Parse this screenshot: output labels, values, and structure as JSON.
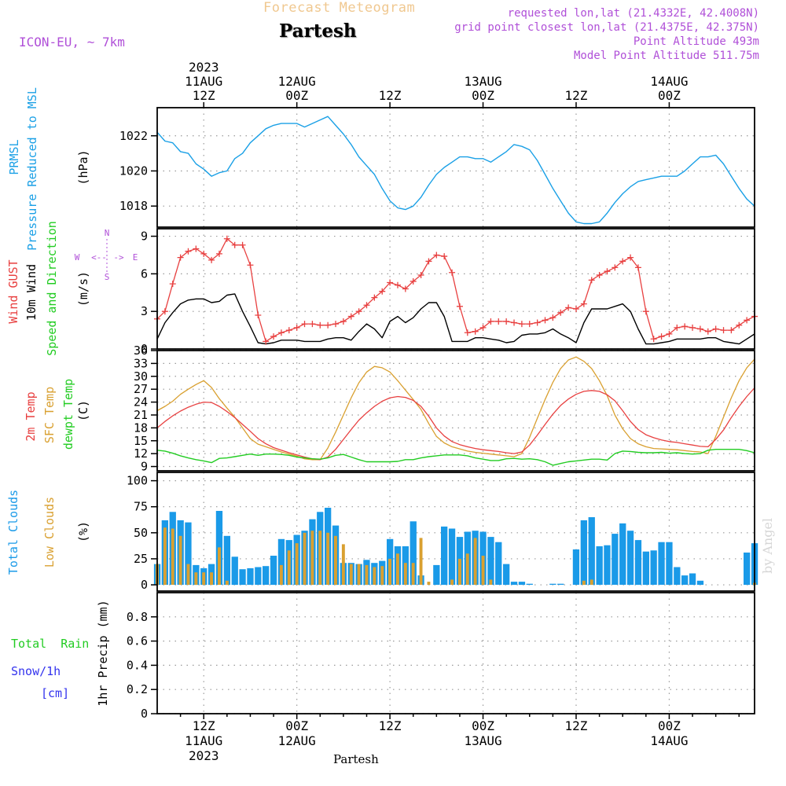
{
  "header": {
    "top_title": "Forecast Meteogram",
    "location": "Partesh",
    "model": "ICON-EU, ~ 7km",
    "requested": "requested lon,lat (21.4332E, 42.4008N)",
    "grid_point": "grid point closest lon,lat (21.4375E, 42.375N)",
    "point_altitude": "Point Altitude 493m",
    "model_altitude": "Model Point Altitude 511.75m"
  },
  "time_axis": {
    "top": [
      {
        "lines": [
          "2023",
          "11AUG",
          "12Z"
        ]
      },
      {
        "lines": [
          "12AUG",
          "00Z"
        ]
      },
      {
        "lines": [
          "12Z"
        ]
      },
      {
        "lines": [
          "13AUG",
          "00Z"
        ]
      },
      {
        "lines": [
          "12Z"
        ]
      },
      {
        "lines": [
          "14AUG",
          "00Z"
        ]
      }
    ],
    "bottom": [
      {
        "lines": [
          "12Z",
          "11AUG",
          "2023"
        ]
      },
      {
        "lines": [
          "00Z",
          "12AUG"
        ]
      },
      {
        "lines": [
          "12Z"
        ]
      },
      {
        "lines": [
          "00Z",
          "13AUG"
        ]
      },
      {
        "lines": [
          "12Z"
        ]
      },
      {
        "lines": [
          "00Z",
          "14AUG"
        ]
      }
    ],
    "footer_label": "Partesh",
    "hour_positions": [
      12,
      24,
      36,
      48,
      60,
      72
    ],
    "hour_range": [
      6,
      83
    ]
  },
  "watermark": "by Angel",
  "colors": {
    "pressure": "#1aa0e6",
    "gust": "#e84040",
    "wind": "#000000",
    "temp2m": "#e84040",
    "sfctemp": "#d9a030",
    "dewpt": "#22cc22",
    "total_clouds": "#1a9ae8",
    "low_clouds": "#d9a030",
    "rain": "#22cc22",
    "snow": "#3333ee",
    "purple": "#b050d8",
    "orange_title": "#f0c890"
  },
  "chart_data": [
    {
      "id": "pressure",
      "type": "line",
      "ylabel_lines": [
        "PRMSL",
        "Pressure Reduced to MSL"
      ],
      "unit": "(hPa)",
      "ylim": [
        1016.8,
        1023.6
      ],
      "yticks": [
        1018,
        1020,
        1022
      ],
      "x": [
        6,
        7,
        8,
        9,
        10,
        11,
        12,
        13,
        14,
        15,
        16,
        17,
        18,
        19,
        20,
        21,
        22,
        23,
        24,
        25,
        26,
        27,
        28,
        29,
        30,
        31,
        32,
        33,
        34,
        35,
        36,
        37,
        38,
        39,
        40,
        41,
        42,
        43,
        44,
        45,
        46,
        47,
        48,
        49,
        50,
        51,
        52,
        53,
        54,
        55,
        56,
        57,
        58,
        59,
        60,
        61,
        62,
        63,
        64,
        65,
        66,
        67,
        68,
        69,
        70,
        71,
        72,
        73,
        74,
        75,
        76,
        77,
        78,
        79,
        80,
        81,
        82,
        83
      ],
      "series": [
        {
          "name": "PRMSL",
          "values": [
            1022.2,
            1021.7,
            1021.6,
            1021.1,
            1021.0,
            1020.4,
            1020.1,
            1019.7,
            1019.9,
            1020.0,
            1020.7,
            1021.0,
            1021.6,
            1022.0,
            1022.4,
            1022.6,
            1022.7,
            1022.7,
            1022.7,
            1022.5,
            1022.7,
            1022.9,
            1023.1,
            1022.6,
            1022.1,
            1021.5,
            1020.8,
            1020.3,
            1019.8,
            1019.0,
            1018.3,
            1017.9,
            1017.8,
            1018.0,
            1018.5,
            1019.2,
            1019.8,
            1020.2,
            1020.5,
            1020.8,
            1020.8,
            1020.7,
            1020.7,
            1020.5,
            1020.8,
            1021.1,
            1021.5,
            1021.4,
            1021.2,
            1020.6,
            1019.8,
            1019.0,
            1018.3,
            1017.6,
            1017.1,
            1017.0,
            1017.0,
            1017.1,
            1017.6,
            1018.2,
            1018.7,
            1019.1,
            1019.4,
            1019.5,
            1019.6,
            1019.7,
            1019.7,
            1019.7,
            1020.0,
            1020.4,
            1020.8,
            1020.8,
            1020.9,
            1020.4,
            1019.7,
            1019.0,
            1018.4,
            1018.0
          ]
        }
      ]
    },
    {
      "id": "wind",
      "type": "line",
      "ylabel_lines": [
        "Wind GUST",
        "10m Wind",
        "Speed and Direction"
      ],
      "unit": "(m/s)",
      "compass": {
        "w": "W",
        "e": "E",
        "n": "N",
        "s": "S",
        "arrow_left": "<--",
        "arrow_right": "->"
      },
      "ylim": [
        0,
        9.6
      ],
      "yticks": [
        0,
        3,
        6,
        9
      ],
      "x": [
        6,
        7,
        8,
        9,
        10,
        11,
        12,
        13,
        14,
        15,
        16,
        17,
        18,
        19,
        20,
        21,
        22,
        23,
        24,
        25,
        26,
        27,
        28,
        29,
        30,
        31,
        32,
        33,
        34,
        35,
        36,
        37,
        38,
        39,
        40,
        41,
        42,
        43,
        44,
        45,
        46,
        47,
        48,
        49,
        50,
        51,
        52,
        53,
        54,
        55,
        56,
        57,
        58,
        59,
        60,
        61,
        62,
        63,
        64,
        65,
        66,
        67,
        68,
        69,
        70,
        71,
        72,
        73,
        74,
        75,
        76,
        77,
        78,
        79,
        80,
        81,
        82,
        83
      ],
      "series": [
        {
          "name": "Wind GUST",
          "values": [
            2.4,
            3.0,
            5.2,
            7.3,
            7.8,
            8.0,
            7.6,
            7.1,
            7.6,
            8.8,
            8.3,
            8.3,
            6.7,
            2.7,
            0.6,
            1.0,
            1.3,
            1.5,
            1.7,
            2.0,
            2.0,
            1.9,
            1.9,
            2.0,
            2.2,
            2.6,
            3.0,
            3.5,
            4.1,
            4.6,
            5.3,
            5.1,
            4.8,
            5.4,
            5.9,
            7.0,
            7.5,
            7.4,
            6.1,
            3.4,
            1.3,
            1.4,
            1.7,
            2.2,
            2.2,
            2.2,
            2.1,
            2.0,
            2.0,
            2.1,
            2.3,
            2.5,
            2.9,
            3.3,
            3.2,
            3.6,
            5.5,
            5.9,
            6.2,
            6.5,
            7.0,
            7.3,
            6.5,
            3.0,
            0.8,
            1.0,
            1.2,
            1.7,
            1.8,
            1.7,
            1.6,
            1.4,
            1.6,
            1.5,
            1.5,
            1.9,
            2.3,
            2.6
          ]
        },
        {
          "name": "10m Wind",
          "values": [
            0.8,
            2.1,
            2.9,
            3.6,
            3.9,
            4.0,
            4.0,
            3.7,
            3.8,
            4.3,
            4.4,
            3.0,
            1.8,
            0.5,
            0.4,
            0.5,
            0.7,
            0.7,
            0.7,
            0.6,
            0.6,
            0.6,
            0.8,
            0.9,
            0.9,
            0.7,
            1.4,
            2.0,
            1.6,
            0.9,
            2.2,
            2.6,
            2.1,
            2.5,
            3.2,
            3.7,
            3.7,
            2.6,
            0.6,
            0.6,
            0.6,
            0.9,
            0.9,
            0.8,
            0.7,
            0.5,
            0.6,
            1.1,
            1.2,
            1.2,
            1.3,
            1.6,
            1.2,
            0.9,
            0.5,
            2.1,
            3.2,
            3.2,
            3.2,
            3.4,
            3.6,
            3.0,
            1.6,
            0.4,
            0.4,
            0.5,
            0.6,
            0.8,
            0.8,
            0.8,
            0.8,
            0.9,
            0.9,
            0.6,
            0.5,
            0.4,
            0.8,
            1.2
          ]
        }
      ]
    },
    {
      "id": "temperature",
      "type": "line",
      "ylabel_lines": [
        "2m Temp",
        "SFC Temp",
        "dewpt Temp"
      ],
      "unit": "(C)",
      "ylim": [
        8,
        36
      ],
      "yticks": [
        9,
        12,
        15,
        18,
        21,
        24,
        27,
        30,
        33,
        36
      ],
      "x": [
        6,
        7,
        8,
        9,
        10,
        11,
        12,
        13,
        14,
        15,
        16,
        17,
        18,
        19,
        20,
        21,
        22,
        23,
        24,
        25,
        26,
        27,
        28,
        29,
        30,
        31,
        32,
        33,
        34,
        35,
        36,
        37,
        38,
        39,
        40,
        41,
        42,
        43,
        44,
        45,
        46,
        47,
        48,
        49,
        50,
        51,
        52,
        53,
        54,
        55,
        56,
        57,
        58,
        59,
        60,
        61,
        62,
        63,
        64,
        65,
        66,
        67,
        68,
        69,
        70,
        71,
        72,
        73,
        74,
        75,
        76,
        77,
        78,
        79,
        80,
        81,
        82,
        83
      ],
      "series": [
        {
          "name": "2m Temp",
          "values": [
            18.0,
            19.5,
            20.8,
            21.9,
            22.8,
            23.5,
            24.0,
            23.9,
            23.0,
            21.8,
            20.4,
            18.8,
            17.2,
            15.5,
            14.3,
            13.4,
            12.8,
            12.2,
            11.7,
            11.2,
            10.8,
            10.6,
            11.2,
            13.0,
            15.3,
            17.6,
            19.8,
            21.5,
            23.0,
            24.2,
            25.0,
            25.3,
            25.1,
            24.4,
            23.0,
            20.7,
            18.0,
            16.1,
            14.8,
            14.1,
            13.6,
            13.2,
            12.9,
            12.7,
            12.5,
            12.2,
            12.0,
            12.4,
            14.0,
            16.3,
            18.8,
            21.2,
            23.2,
            24.7,
            25.8,
            26.5,
            26.7,
            26.5,
            25.7,
            24.3,
            22.0,
            19.5,
            17.6,
            16.4,
            15.7,
            15.2,
            14.8,
            14.6,
            14.3,
            14.0,
            13.7,
            13.6,
            15.3,
            17.5,
            20.4,
            23.0,
            25.3,
            27.3
          ]
        },
        {
          "name": "SFC Temp",
          "values": [
            22.0,
            23.0,
            24.2,
            25.8,
            27.0,
            28.1,
            29.0,
            27.4,
            24.8,
            22.6,
            20.5,
            18.0,
            15.5,
            14.2,
            13.6,
            13.0,
            12.4,
            11.9,
            11.4,
            10.8,
            10.6,
            10.6,
            13.3,
            17.0,
            21.0,
            25.0,
            28.5,
            31.0,
            32.3,
            32.0,
            31.0,
            29.0,
            26.8,
            24.6,
            22.3,
            19.0,
            16.0,
            14.5,
            13.6,
            13.1,
            12.6,
            12.3,
            12.1,
            11.9,
            11.7,
            11.5,
            11.3,
            12.0,
            15.8,
            20.2,
            24.6,
            28.6,
            31.8,
            33.8,
            34.5,
            33.5,
            31.8,
            29.0,
            25.5,
            21.0,
            17.8,
            15.5,
            14.3,
            13.6,
            13.2,
            13.1,
            13.0,
            12.9,
            12.7,
            12.5,
            12.4,
            12.0,
            16.0,
            20.5,
            25.0,
            29.0,
            32.0,
            34.0
          ]
        },
        {
          "name": "dewpt Temp",
          "values": [
            12.8,
            12.6,
            12.1,
            11.5,
            11.0,
            10.6,
            10.3,
            9.9,
            10.9,
            11.0,
            11.3,
            11.6,
            11.9,
            11.6,
            11.9,
            11.9,
            11.8,
            11.6,
            11.2,
            11.0,
            10.8,
            10.7,
            11.0,
            11.6,
            11.8,
            11.2,
            10.6,
            10.1,
            10.1,
            10.1,
            10.1,
            10.2,
            10.6,
            10.6,
            11.0,
            11.3,
            11.5,
            11.7,
            11.7,
            11.7,
            11.5,
            11.0,
            10.7,
            10.4,
            10.4,
            10.8,
            10.9,
            10.7,
            10.8,
            10.6,
            10.1,
            9.3,
            9.7,
            10.1,
            10.3,
            10.5,
            10.7,
            10.7,
            10.5,
            12.0,
            12.6,
            12.5,
            12.3,
            12.2,
            12.2,
            12.3,
            12.1,
            12.2,
            12.0,
            11.9,
            12.0,
            12.8,
            13.0,
            13.0,
            13.0,
            13.0,
            12.7,
            12.2
          ]
        }
      ]
    },
    {
      "id": "clouds",
      "type": "bar",
      "ylabel_lines": [
        "Total Clouds",
        "Low Clouds"
      ],
      "unit": "(%)",
      "ylim": [
        -6,
        108
      ],
      "yticks": [
        0,
        25,
        50,
        75,
        100
      ],
      "x": [
        6,
        7,
        8,
        9,
        10,
        11,
        12,
        13,
        14,
        15,
        16,
        17,
        18,
        19,
        20,
        21,
        22,
        23,
        24,
        25,
        26,
        27,
        28,
        29,
        30,
        31,
        32,
        33,
        34,
        35,
        36,
        37,
        38,
        39,
        40,
        41,
        42,
        43,
        44,
        45,
        46,
        47,
        48,
        49,
        50,
        51,
        52,
        53,
        54,
        55,
        56,
        57,
        58,
        59,
        60,
        61,
        62,
        63,
        64,
        65,
        66,
        67,
        68,
        69,
        70,
        71,
        72,
        73,
        74,
        75,
        76,
        77,
        78,
        79,
        80,
        81,
        82,
        83
      ],
      "series": [
        {
          "name": "Total Clouds",
          "values": [
            20,
            62,
            70,
            62,
            60,
            19,
            16,
            20,
            71,
            47,
            27,
            15,
            16,
            17,
            18,
            28,
            44,
            43,
            48,
            52,
            63,
            70,
            74,
            57,
            21,
            21,
            20,
            24,
            21,
            23,
            44,
            37,
            37,
            61,
            9,
            0,
            19,
            56,
            54,
            46,
            51,
            52,
            51,
            46,
            41,
            20,
            3,
            3,
            1,
            0,
            0,
            1,
            1,
            0,
            34,
            62,
            65,
            37,
            38,
            49,
            59,
            52,
            43,
            32,
            33,
            41,
            41,
            17,
            9,
            11,
            4,
            0,
            0,
            0,
            0,
            0,
            31,
            40
          ]
        },
        {
          "name": "Low Clouds",
          "values": [
            20,
            55,
            54,
            47,
            20,
            12,
            12,
            12,
            36,
            4,
            0,
            0,
            0,
            0,
            0,
            0,
            19,
            33,
            40,
            50,
            52,
            52,
            50,
            47,
            39,
            20,
            20,
            19,
            17,
            18,
            25,
            30,
            21,
            21,
            45,
            3,
            0,
            0,
            5,
            25,
            30,
            45,
            28,
            5,
            0,
            0,
            0,
            0,
            0,
            0,
            0,
            0,
            0,
            0,
            0,
            4,
            5,
            0,
            0,
            0,
            0,
            0,
            0,
            0,
            0,
            0,
            0,
            0,
            0,
            0,
            0,
            0,
            0,
            0,
            0,
            0,
            0,
            2
          ]
        }
      ]
    },
    {
      "id": "precip",
      "type": "bar",
      "ylabel_lines": [
        "Total  Rain",
        "Snow/1h",
        "[cm]"
      ],
      "unit": "1hr Precip (mm)",
      "ylim": [
        0,
        1.0
      ],
      "yticks": [
        0,
        0.2,
        0.4,
        0.6,
        0.8
      ],
      "ytick_labels": [
        "0",
        "0.2",
        "0.4",
        "0.6",
        "0.8"
      ],
      "x": [],
      "series": [
        {
          "name": "Total Rain",
          "values": []
        },
        {
          "name": "Snow/1h",
          "values": []
        }
      ]
    }
  ]
}
